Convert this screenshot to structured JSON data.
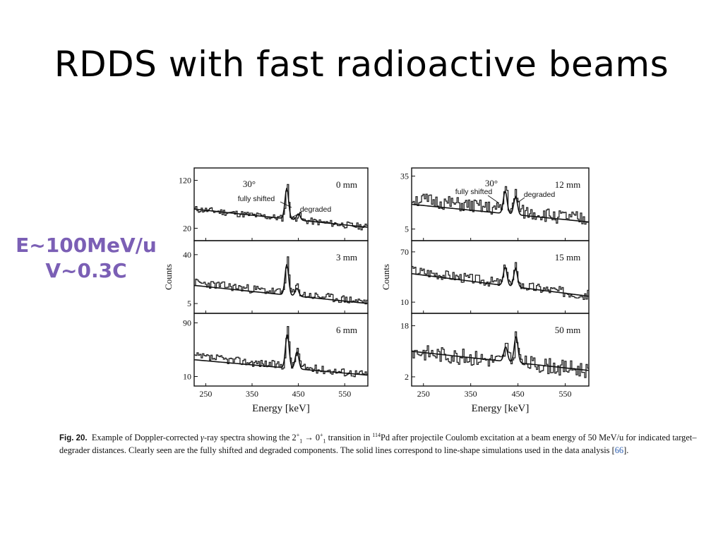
{
  "slide": {
    "title": "RDDS with fast radioactive beams",
    "side_note": [
      "E~100MeV/u",
      "V~0.3C"
    ],
    "side_note_color": "#7b5fb5"
  },
  "caption": {
    "label": "Fig. 20.",
    "before_math": "Example of Doppler-corrected ",
    "gamma": "γ",
    "mid_text": "-ray spectra showing the 2",
    "state_sup": "+",
    "state_sub": "1",
    "arrow": "→",
    "zero": "0",
    "mass_number": "114",
    "after_isotope": "Pd after projectile Coulomb excitation at a beam energy of 50 MeV/u for indicated target–degrader distances. Clearly seen are the fully shifted and degraded components. The solid lines correspond to line-shape simulations used in the data analysis [",
    "ref": "66",
    "end": "].",
    "in_word": " transition in "
  },
  "chart_data": [
    {
      "type": "line",
      "column": "left",
      "xlabel": "Energy [keV]",
      "ylabel": "Counts",
      "x_ticks": [
        250,
        350,
        450,
        550
      ],
      "xlim": [
        225,
        600
      ],
      "angle_label": "30°",
      "panels": [
        {
          "distance": "0 mm",
          "yticks": [
            20,
            120
          ],
          "ylim": [
            0,
            140
          ],
          "annotations": [
            "fully shifted",
            "degraded"
          ],
          "line": [
            [
              225,
              60
            ],
            [
              600,
              22
            ]
          ],
          "peaks": [
            {
              "x": 425,
              "h": 70
            },
            {
              "x": 450,
              "h": 14
            }
          ],
          "base": [
            60,
            22
          ],
          "noise": 7,
          "seed": 11
        },
        {
          "distance": "3 mm",
          "yticks": [
            5,
            40
          ],
          "ylim": [
            0,
            48
          ],
          "line": [
            [
              225,
              18
            ],
            [
              600,
              5
            ]
          ],
          "peaks": [
            {
              "x": 425,
              "h": 24
            },
            {
              "x": 447,
              "h": 6
            }
          ],
          "base": [
            20,
            6
          ],
          "noise": 3,
          "seed": 23
        },
        {
          "distance": "6 mm",
          "yticks": [
            10,
            90
          ],
          "ylim": [
            0,
            100
          ],
          "line": [
            [
              225,
              35
            ],
            [
              600,
              12
            ]
          ],
          "peaks": [
            {
              "x": 426,
              "h": 55
            },
            {
              "x": 447,
              "h": 28
            }
          ],
          "base": [
            40,
            13
          ],
          "noise": 6,
          "seed": 37
        }
      ]
    },
    {
      "type": "line",
      "column": "right",
      "xlabel": "Energy [keV]",
      "ylabel": "Counts",
      "x_ticks": [
        250,
        350,
        450,
        550
      ],
      "xlim": [
        225,
        600
      ],
      "angle_label": "30°",
      "panels": [
        {
          "distance": "12 mm",
          "yticks": [
            5,
            35
          ],
          "ylim": [
            0,
            38
          ],
          "annotations": [
            "fully shifted",
            "degraded"
          ],
          "line": [
            [
              225,
              19
            ],
            [
              600,
              9
            ]
          ],
          "peaks": [
            {
              "x": 423,
              "h": 14
            },
            {
              "x": 445,
              "h": 11
            }
          ],
          "base": [
            22,
            10
          ],
          "noise": 4,
          "seed": 51
        },
        {
          "distance": "15 mm",
          "yticks": [
            10,
            70
          ],
          "ylim": [
            0,
            80
          ],
          "line": [
            [
              225,
              44
            ],
            [
              600,
              17
            ]
          ],
          "peaks": [
            {
              "x": 423,
              "h": 24
            },
            {
              "x": 445,
              "h": 24
            }
          ],
          "base": [
            48,
            18
          ],
          "noise": 6,
          "seed": 67
        },
        {
          "distance": "50 mm",
          "yticks": [
            2,
            18
          ],
          "ylim": [
            0,
            21
          ],
          "line": [
            [
              225,
              10
            ],
            [
              600,
              4
            ]
          ],
          "peaks": [
            {
              "x": 424,
              "h": 5
            },
            {
              "x": 446,
              "h": 9
            }
          ],
          "base": [
            10,
            4
          ],
          "noise": 2.5,
          "seed": 83
        }
      ]
    }
  ]
}
